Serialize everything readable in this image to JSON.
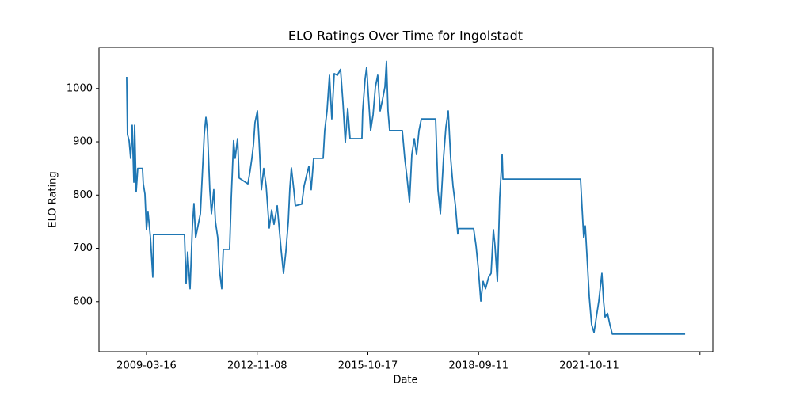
{
  "chart_data": {
    "type": "line",
    "title": "ELO Ratings Over Time for Ingolstadt",
    "xlabel": "Date",
    "ylabel": "ELO Rating",
    "x": [
      -0.179,
      -0.172,
      -0.157,
      -0.143,
      -0.129,
      -0.114,
      -0.107,
      -0.093,
      -0.079,
      -0.036,
      -0.029,
      -0.014,
      0,
      0.014,
      0.036,
      0.057,
      0.064,
      0.343,
      0.358,
      0.372,
      0.394,
      0.415,
      0.429,
      0.444,
      0.465,
      0.487,
      0.501,
      0.522,
      0.537,
      0.551,
      0.572,
      0.587,
      0.608,
      0.623,
      0.644,
      0.658,
      0.68,
      0.694,
      0.751,
      0.766,
      0.787,
      0.801,
      0.823,
      0.837,
      0.916,
      0.937,
      0.952,
      0.966,
      0.98,
      1.002,
      1.016,
      1.038,
      1.059,
      1.081,
      1.109,
      1.131,
      1.152,
      1.181,
      1.216,
      1.238,
      1.259,
      1.281,
      1.295,
      1.309,
      1.331,
      1.345,
      1.403,
      1.424,
      1.445,
      1.467,
      1.488,
      1.51,
      1.596,
      1.61,
      1.631,
      1.653,
      1.674,
      1.696,
      1.725,
      1.753,
      1.775,
      1.796,
      1.818,
      1.839,
      1.946,
      1.953,
      1.975,
      1.989,
      2.004,
      2.025,
      2.047,
      2.068,
      2.089,
      2.111,
      2.132,
      2.154,
      2.168,
      2.182,
      2.197,
      2.311,
      2.333,
      2.354,
      2.376,
      2.397,
      2.419,
      2.44,
      2.462,
      2.483,
      2.612,
      2.633,
      2.655,
      2.683,
      2.705,
      2.726,
      2.748,
      2.769,
      2.791,
      2.812,
      2.819,
      2.955,
      2.977,
      2.998,
      3.02,
      3.041,
      3.063,
      3.091,
      3.113,
      3.134,
      3.148,
      3.17,
      3.191,
      3.213,
      3.22,
      3.921,
      3.936,
      3.95,
      3.964,
      3.986,
      4.0,
      4.021,
      4.043,
      4.064,
      4.086,
      4.114,
      4.129,
      4.143,
      4.165,
      4.186,
      4.208,
      4.866
    ],
    "series": [
      {
        "name": "Ingolstadt",
        "color": "#1f77b4",
        "values": [
          1022,
          914,
          902,
          869,
          931,
          824,
          931,
          806,
          850,
          850,
          821,
          802,
          735,
          768,
          720,
          646,
          726,
          726,
          634,
          693,
          624,
          742,
          784,
          720,
          742,
          765,
          824,
          914,
          946,
          921,
          810,
          765,
          810,
          750,
          720,
          661,
          624,
          698,
          698,
          795,
          902,
          869,
          906,
          832,
          821,
          847,
          869,
          894,
          936,
          958,
          906,
          810,
          850,
          817,
          738,
          772,
          745,
          780,
          698,
          653,
          693,
          750,
          812,
          851,
          810,
          780,
          783,
          817,
          836,
          854,
          810,
          869,
          869,
          921,
          958,
          1025,
          943,
          1028,
          1025,
          1036,
          973,
          899,
          963,
          906,
          906,
          958,
          1018,
          1040,
          988,
          921,
          951,
          1003,
          1025,
          958,
          979,
          1003,
          1051,
          958,
          921,
          921,
          869,
          832,
          787,
          876,
          906,
          876,
          921,
          943,
          943,
          810,
          765,
          869,
          928,
          958,
          869,
          817,
          780,
          727,
          737,
          737,
          705,
          661,
          601,
          638,
          624,
          646,
          653,
          735,
          705,
          638,
          795,
          876,
          830,
          830,
          772,
          720,
          742,
          661,
          609,
          557,
          542,
          571,
          601,
          653,
          601,
          571,
          578,
          557,
          539,
          539
        ]
      }
    ],
    "xlim": [
      -0.429,
      5.116
    ],
    "xticks": [
      {
        "value": 0,
        "label": "2009-03-16"
      },
      {
        "value": 1,
        "label": "2012-11-08"
      },
      {
        "value": 2,
        "label": "2015-10-17"
      },
      {
        "value": 3,
        "label": "2018-09-11"
      },
      {
        "value": 4,
        "label": "2021-10-11"
      },
      {
        "value": 5,
        "label": null
      }
    ],
    "ylim": [
      506,
      1077
    ],
    "yticks": [
      600,
      700,
      800,
      900,
      1000
    ]
  }
}
